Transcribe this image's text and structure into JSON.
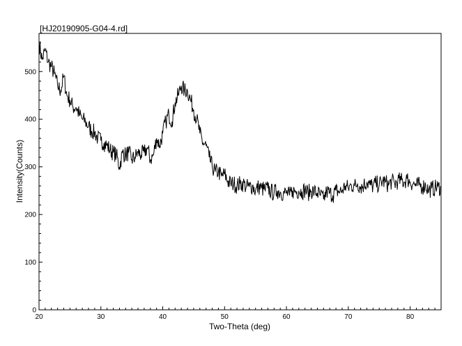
{
  "chart_data": {
    "type": "line",
    "title": "[HJ20190905-G04-4.rd]",
    "xlabel": "Two-Theta (deg)",
    "ylabel": "Intensity(Counts)",
    "xlim": [
      20,
      85
    ],
    "ylim": [
      0,
      580
    ],
    "xticks": [
      20,
      30,
      40,
      50,
      60,
      70,
      80
    ],
    "yticks": [
      0,
      100,
      200,
      300,
      400,
      500
    ],
    "grid": false,
    "line_color": "#000000",
    "series": [
      {
        "x": [
          20,
          20.5,
          21,
          21.5,
          22,
          22.5,
          23,
          23.5,
          24,
          24.5,
          25,
          25.5,
          26,
          26.5,
          27,
          27.5,
          28,
          28.5,
          29,
          29.5,
          30,
          30.5,
          31,
          31.5,
          32,
          32.5,
          33,
          33.5,
          34,
          34.5,
          35,
          35.5,
          36,
          36.5,
          37,
          37.5,
          38,
          38.5,
          39,
          39.5,
          40,
          40.5,
          41,
          41.5,
          42,
          42.5,
          43,
          43.5,
          44,
          44.5,
          45,
          45.5,
          46,
          46.5,
          47,
          47.5,
          48,
          48.5,
          49,
          49.5,
          50,
          50.5,
          51,
          51.5,
          52,
          52.5,
          53,
          53.5,
          54,
          54.5,
          55,
          55.5,
          56,
          56.5,
          57,
          57.5,
          58,
          58.5,
          59,
          59.5,
          60,
          60.5,
          61,
          61.5,
          62,
          62.5,
          63,
          63.5,
          64,
          64.5,
          65,
          65.5,
          66,
          66.5,
          67,
          67.5,
          68,
          68.5,
          69,
          69.5,
          70,
          70.5,
          71,
          71.5,
          72,
          72.5,
          73,
          73.5,
          74,
          74.5,
          75,
          75.5,
          76,
          76.5,
          77,
          77.5,
          78,
          78.5,
          79,
          79.5,
          80,
          80.5,
          81,
          81.5,
          82,
          82.5,
          83,
          83.5,
          84,
          84.5,
          85
        ],
        "values": [
          560,
          525,
          545,
          520,
          510,
          495,
          470,
          460,
          490,
          450,
          440,
          425,
          425,
          410,
          400,
          395,
          385,
          375,
          372,
          360,
          355,
          350,
          345,
          335,
          330,
          325,
          300,
          330,
          325,
          330,
          315,
          320,
          330,
          325,
          330,
          340,
          315,
          325,
          360,
          345,
          370,
          395,
          410,
          395,
          435,
          450,
          470,
          460,
          460,
          440,
          420,
          400,
          370,
          350,
          345,
          320,
          300,
          290,
          290,
          280,
          285,
          270,
          265,
          265,
          260,
          265,
          265,
          258,
          258,
          260,
          250,
          258,
          255,
          252,
          255,
          248,
          245,
          250,
          247,
          245,
          245,
          240,
          250,
          248,
          250,
          248,
          252,
          245,
          250,
          248,
          245,
          240,
          232,
          248,
          245,
          240,
          250,
          248,
          250,
          260,
          255,
          262,
          260,
          265,
          258,
          262,
          268,
          262,
          260,
          265,
          262,
          270,
          268,
          262,
          270,
          265,
          270,
          272,
          268,
          275,
          268,
          265,
          260,
          262,
          258,
          262,
          250,
          255,
          255,
          258,
          255
        ]
      }
    ]
  }
}
